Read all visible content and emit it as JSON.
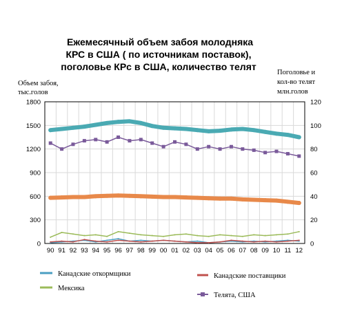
{
  "chart_data": {
    "type": "line",
    "title": [
      "Ежемесячный объем забоя молодняка",
      "КРС в США ( по источникам поставок),",
      "поголовье КРс в США, количество телят"
    ],
    "left_axis_label": [
      "Объем забоя,",
      "тыс.голов"
    ],
    "right_axis_label": [
      "Поголовье и",
      "кол-во телят",
      "млн.голов"
    ],
    "left_ylim": [
      0,
      1800
    ],
    "left_ticks": [
      "0",
      "300",
      "600",
      "900",
      "1200",
      "1500",
      "1800"
    ],
    "right_ylim": [
      0,
      120
    ],
    "right_ticks": [
      "0",
      "20",
      "40",
      "60",
      "80",
      "100",
      "120"
    ],
    "x_labels": [
      "90",
      "91",
      "92",
      "93",
      "94",
      "95",
      "96",
      "97",
      "98",
      "99",
      "00",
      "01",
      "02",
      "03",
      "04",
      "05",
      "06",
      "07",
      "08",
      "09",
      "10",
      "11",
      "12"
    ],
    "grid": true,
    "legend_position": "bottom",
    "series": [
      {
        "name": "Канадские откормщики",
        "axis": "left",
        "color": "#4a9ec2",
        "x": [
          "90",
          "91",
          "92",
          "93",
          "94",
          "95",
          "96",
          "97",
          "98",
          "99",
          "00",
          "01",
          "02",
          "03",
          "04",
          "05",
          "06",
          "07",
          "08",
          "09",
          "10",
          "11",
          "12"
        ],
        "values": [
          10,
          20,
          30,
          40,
          20,
          40,
          60,
          30,
          40,
          30,
          40,
          30,
          20,
          30,
          10,
          20,
          30,
          20,
          30,
          20,
          30,
          40,
          30
        ]
      },
      {
        "name": "Канадские поставщики",
        "axis": "left",
        "color": "#c0504d",
        "x": [
          "90",
          "91",
          "92",
          "93",
          "94",
          "95",
          "96",
          "97",
          "98",
          "99",
          "00",
          "01",
          "02",
          "03",
          "04",
          "05",
          "06",
          "07",
          "08",
          "09",
          "10",
          "11",
          "12"
        ],
        "values": [
          20,
          30,
          20,
          50,
          30,
          20,
          40,
          30,
          20,
          30,
          40,
          30,
          20,
          10,
          10,
          20,
          40,
          30,
          20,
          30,
          20,
          30,
          40
        ]
      },
      {
        "name": "Мексика",
        "axis": "left",
        "color": "#9bbb59",
        "x": [
          "90",
          "91",
          "92",
          "93",
          "94",
          "95",
          "96",
          "97",
          "98",
          "99",
          "00",
          "01",
          "02",
          "03",
          "04",
          "05",
          "06",
          "07",
          "08",
          "09",
          "10",
          "11",
          "12"
        ],
        "values": [
          80,
          140,
          120,
          100,
          110,
          90,
          150,
          130,
          110,
          100,
          90,
          110,
          120,
          100,
          90,
          110,
          100,
          90,
          110,
          100,
          110,
          120,
          150
        ]
      },
      {
        "name": "Телята, США",
        "axis": "right",
        "color": "#7a5a9a",
        "x": [
          "90",
          "91",
          "92",
          "93",
          "94",
          "95",
          "96",
          "97",
          "98",
          "99",
          "00",
          "01",
          "02",
          "03",
          "04",
          "05",
          "06",
          "07",
          "08",
          "09",
          "10",
          "11",
          "12"
        ],
        "values": [
          85,
          80,
          84,
          87,
          88,
          86,
          90,
          87,
          88,
          85,
          82,
          86,
          84,
          80,
          82,
          80,
          82,
          80,
          79,
          77,
          78,
          76,
          74
        ]
      },
      {
        "name": "",
        "axis": "right",
        "color": "#4aaab3",
        "x": [
          "90",
          "91",
          "92",
          "93",
          "94",
          "95",
          "96",
          "97",
          "98",
          "99",
          "00",
          "01",
          "02",
          "03",
          "04",
          "05",
          "06",
          "07",
          "08",
          "09",
          "10",
          "11",
          "12"
        ],
        "values": [
          96,
          97,
          98,
          99,
          100.5,
          102,
          103,
          103.5,
          102,
          99.5,
          98,
          97.5,
          97,
          96,
          95,
          95.5,
          96.5,
          97,
          96,
          94.5,
          93,
          92,
          90
        ]
      },
      {
        "name": "",
        "axis": "left",
        "color": "#e8894a",
        "x": [
          "90",
          "91",
          "92",
          "93",
          "94",
          "95",
          "96",
          "97",
          "98",
          "99",
          "00",
          "01",
          "02",
          "03",
          "04",
          "05",
          "06",
          "07",
          "08",
          "09",
          "10",
          "11",
          "12"
        ],
        "values": [
          580,
          585,
          590,
          590,
          600,
          605,
          610,
          605,
          600,
          595,
          590,
          590,
          585,
          580,
          575,
          570,
          570,
          560,
          555,
          550,
          545,
          530,
          515
        ]
      }
    ]
  }
}
